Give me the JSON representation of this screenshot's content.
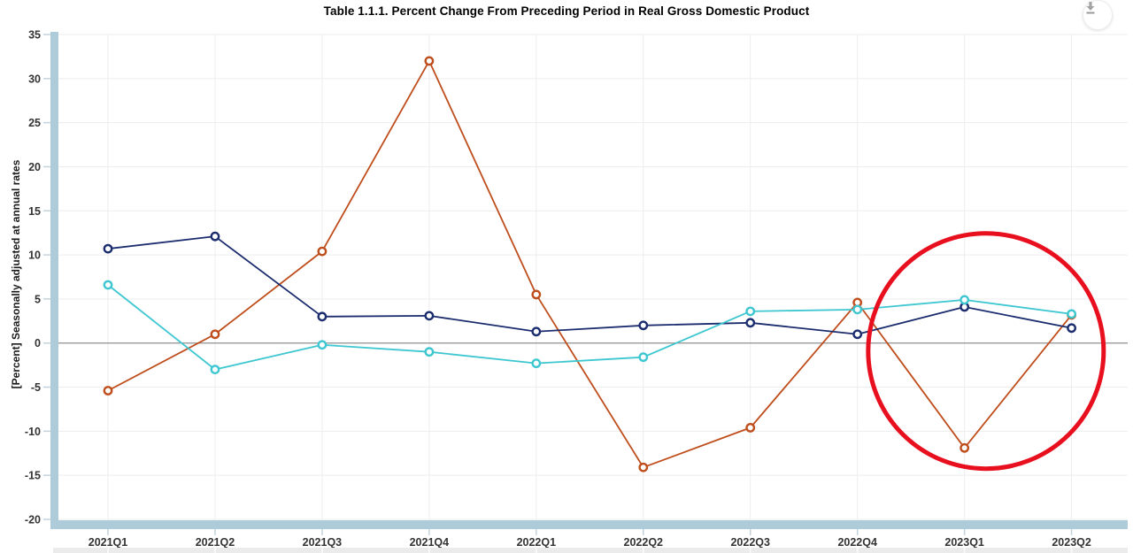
{
  "header": {
    "title": "Table 1.1.1. Percent Change From Preceding Period in Real Gross Domestic Product",
    "download_button": {
      "icon": "download-icon"
    }
  },
  "chart_data": {
    "type": "line",
    "title": "Table 1.1.1. Percent Change From Preceding Period in Real Gross Domestic Product",
    "ylabel": "[Percent] Seasonally adjusted at annual rates",
    "xlabel": "",
    "categories": [
      "2021Q1",
      "2021Q2",
      "2021Q3",
      "2021Q4",
      "2022Q1",
      "2022Q2",
      "2022Q3",
      "2022Q4",
      "2023Q1",
      "2023Q2"
    ],
    "ylim": [
      -20,
      35
    ],
    "ytick_step": 5,
    "yticks": [
      35,
      30,
      25,
      20,
      15,
      10,
      5,
      0,
      -5,
      -10,
      -15,
      -20
    ],
    "grid": true,
    "legend_position": "none",
    "series": [
      {
        "id": "orange-line",
        "color": "#bf4e1d",
        "marker": "open-circle",
        "values": [
          -5.4,
          1.0,
          10.4,
          32.0,
          5.5,
          -14.1,
          -9.6,
          4.6,
          -11.9,
          3.2
        ]
      },
      {
        "id": "navy-line",
        "color": "#1b2d6e",
        "marker": "open-circle",
        "values": [
          10.7,
          12.1,
          3.0,
          3.1,
          1.3,
          2.0,
          2.3,
          1.0,
          4.1,
          1.7
        ]
      },
      {
        "id": "teal-line",
        "color": "#3ec7d1",
        "marker": "open-circle",
        "values": [
          6.6,
          -3.0,
          -0.2,
          -1.0,
          -2.3,
          -1.6,
          3.6,
          3.8,
          4.9,
          3.3
        ]
      }
    ],
    "annotation": {
      "shape": "circle",
      "color": "#e8101f",
      "center_category_index": 8.2,
      "center_value": -0.9,
      "radius_px": 133,
      "stroke_px": 5
    },
    "colors": {
      "axis_bar": "#aecbd9",
      "grid_line": "#ededed",
      "zero_line": "#8f8f8f",
      "tick_mark": "#c3d3dd",
      "tick_label": "#333333",
      "bottom_strip": "#ebebeb"
    }
  }
}
